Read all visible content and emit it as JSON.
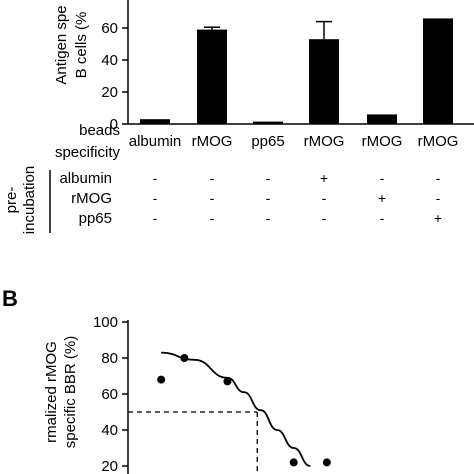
{
  "panel_b_label": "B",
  "row_labels": {
    "beads": "beads",
    "specificity": "specificity",
    "pre": "pre-",
    "incubation": "incubation"
  },
  "preincubation": {
    "rows": [
      {
        "label": "albumin",
        "marks": [
          "-",
          "-",
          "-",
          "+",
          "-",
          "-"
        ]
      },
      {
        "label": "rMOG",
        "marks": [
          "-",
          "-",
          "-",
          "-",
          "+",
          "-"
        ]
      },
      {
        "label": "pp65",
        "marks": [
          "-",
          "-",
          "-",
          "-",
          "-",
          "+"
        ]
      }
    ]
  },
  "chart_data": [
    {
      "type": "bar",
      "ylabel_lines": [
        "Antigen spe",
        "B cells (%"
      ],
      "categories": [
        "albumin",
        "rMOG",
        "pp65",
        "rMOG",
        "rMOG",
        "rMOG"
      ],
      "values": [
        3,
        59,
        1.5,
        53,
        6,
        66
      ],
      "errors": [
        0,
        1.5,
        0,
        11,
        0,
        0
      ],
      "ylim": [
        0,
        70
      ],
      "yticks": [
        0,
        20,
        40,
        60
      ],
      "ytick_labels": [
        "0",
        "20",
        "40",
        "60"
      ]
    },
    {
      "type": "scatter",
      "ylabel_lines": [
        "rmalized rMOG",
        "specific BBR (%)"
      ],
      "points": [
        {
          "x": 1.0,
          "y": 68
        },
        {
          "x": 1.7,
          "y": 80
        },
        {
          "x": 3.0,
          "y": 67
        },
        {
          "x": 5.0,
          "y": 22
        },
        {
          "x": 6.0,
          "y": 22
        }
      ],
      "fit_curve": [
        {
          "x": 1.0,
          "y": 83
        },
        {
          "x": 2.0,
          "y": 79
        },
        {
          "x": 3.0,
          "y": 69
        },
        {
          "x": 3.5,
          "y": 61
        },
        {
          "x": 4.0,
          "y": 51
        },
        {
          "x": 4.5,
          "y": 40
        },
        {
          "x": 5.0,
          "y": 30
        },
        {
          "x": 5.5,
          "y": 20
        }
      ],
      "reference_y": 50,
      "reference_x": 3.9,
      "xlim": [
        0,
        7
      ],
      "ylim": [
        15,
        100
      ],
      "yticks": [
        20,
        40,
        60,
        80,
        100
      ],
      "ytick_labels": [
        "20",
        "40",
        "60",
        "80",
        "100"
      ]
    }
  ]
}
